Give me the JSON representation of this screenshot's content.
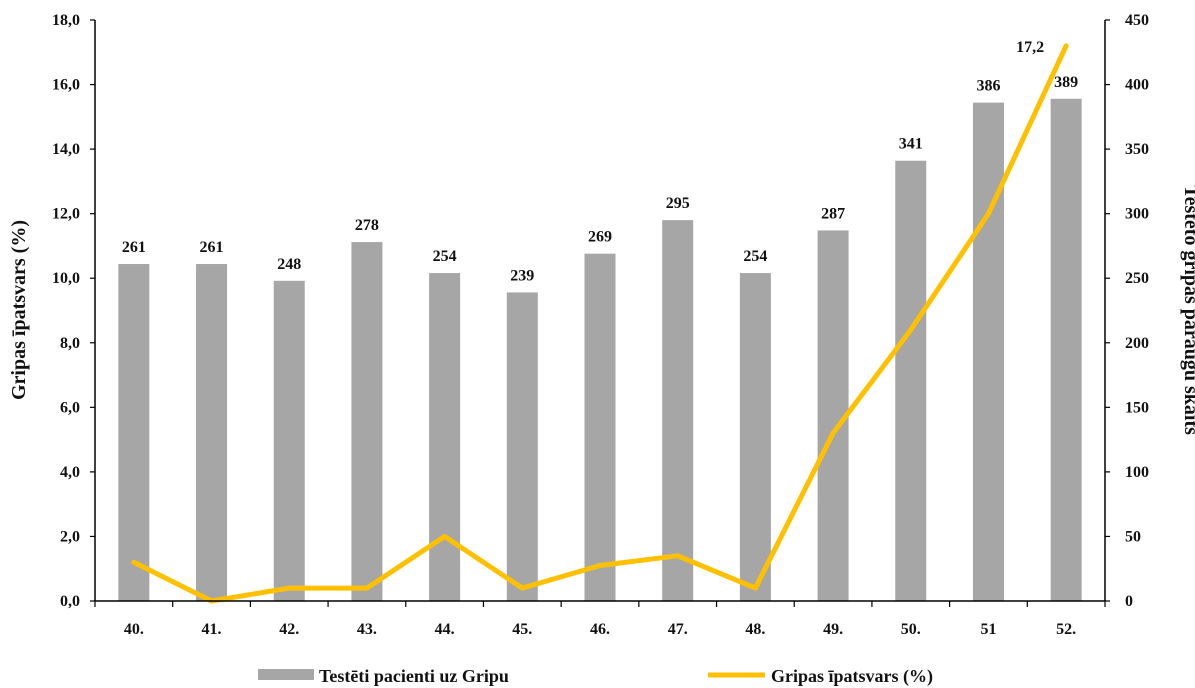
{
  "chart_data": {
    "type": "bar",
    "categories": [
      "40.",
      "41.",
      "42.",
      "43.",
      "44.",
      "45.",
      "46.",
      "47.",
      "48.",
      "49.",
      "50.",
      "51",
      "52."
    ],
    "series": [
      {
        "name": "Testēti pacienti uz Gripu",
        "type": "bar",
        "axis": "right",
        "color": "#a6a6a6",
        "values": [
          261,
          261,
          248,
          278,
          254,
          239,
          269,
          295,
          254,
          287,
          341,
          386,
          389
        ],
        "labels": [
          "261",
          "261",
          "248",
          "278",
          "254",
          "239",
          "269",
          "295",
          "254",
          "287",
          "341",
          "386",
          "389"
        ]
      },
      {
        "name": "Gripas īpatsvars (%)",
        "type": "line",
        "axis": "left",
        "color": "#ffc000",
        "values": [
          1.2,
          0.0,
          0.4,
          0.4,
          2.0,
          0.4,
          1.1,
          1.4,
          0.4,
          5.2,
          8.4,
          12.0,
          17.2
        ],
        "last_label": "17,2"
      }
    ],
    "ylabel": "Gripas īpatsvars (%)",
    "y2label": "Testēto gripas paraugu skaits",
    "ylim": [
      0,
      18
    ],
    "y2lim": [
      0,
      450
    ],
    "yticks": [
      "0,0",
      "2,0",
      "4,0",
      "6,0",
      "8,0",
      "10,0",
      "12,0",
      "14,0",
      "16,0",
      "18,0"
    ],
    "y2ticks": [
      "0",
      "50",
      "100",
      "150",
      "200",
      "250",
      "300",
      "350",
      "400",
      "450"
    ],
    "grid": false,
    "legend_position": "bottom"
  }
}
